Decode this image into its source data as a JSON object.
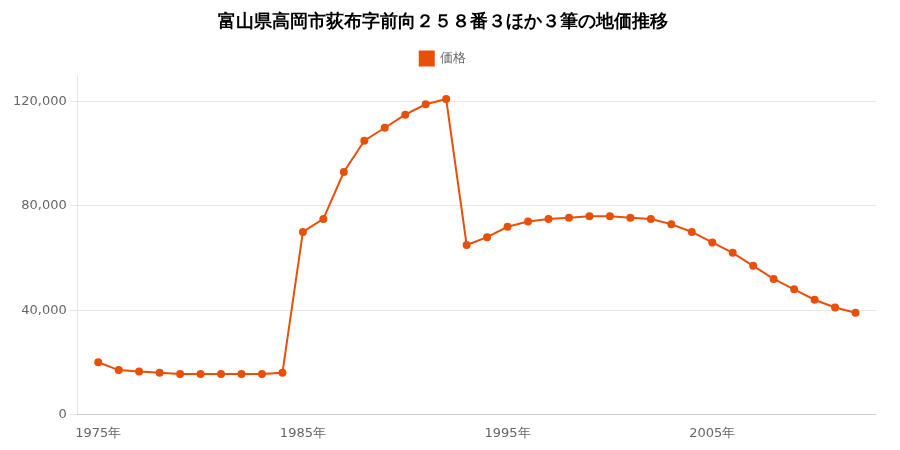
{
  "chart_data": {
    "type": "line",
    "title": "富山県高岡市荻布字前向２５８番３ほか３筆の地価推移",
    "series": [
      {
        "name": "価格",
        "color": "#e8500a",
        "marker": "circle",
        "values": [
          20000,
          17000,
          16500,
          16000,
          15500,
          15500,
          15500,
          15500,
          15500,
          16000,
          70000,
          75000,
          93000,
          105000,
          110000,
          115000,
          119000,
          121000,
          65000,
          68000,
          72000,
          74000,
          75000,
          75500,
          76000,
          76000,
          75500,
          75000,
          73000,
          70000,
          66000,
          62000,
          57000,
          52000,
          48000,
          44000,
          41000,
          39000
        ]
      }
    ],
    "x": [
      1975,
      1976,
      1977,
      1978,
      1979,
      1980,
      1981,
      1982,
      1983,
      1984,
      1985,
      1986,
      1987,
      1988,
      1989,
      1990,
      1991,
      1992,
      1993,
      1994,
      1995,
      1996,
      1997,
      1998,
      1999,
      2000,
      2001,
      2002,
      2003,
      2004,
      2005,
      2006,
      2007,
      2008,
      2009,
      2010,
      2011,
      2012
    ],
    "xlim": [
      1974,
      2013
    ],
    "xticks": [
      {
        "value": 1975,
        "label": "1975年"
      },
      {
        "value": 1985,
        "label": "1985年"
      },
      {
        "value": 1995,
        "label": "1995年"
      },
      {
        "value": 2005,
        "label": "2005年"
      }
    ],
    "ylim": [
      0,
      130000
    ],
    "yticks": [
      0,
      {
        "value": 40000,
        "label": "40,000"
      },
      {
        "value": 80000,
        "label": "80,000"
      },
      {
        "value": 120000,
        "label": "120,000"
      }
    ],
    "grid": "y",
    "legend": "top"
  }
}
